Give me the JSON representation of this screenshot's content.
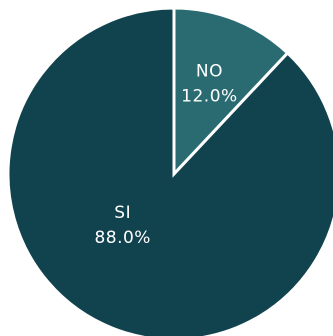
{
  "chart_data": {
    "type": "pie",
    "slices": [
      {
        "label": "NO",
        "value": 12.0,
        "display": "12.0%",
        "color": "#2a6b72"
      },
      {
        "label": "SI",
        "value": 88.0,
        "display": "88.0%",
        "color": "#11434f"
      }
    ],
    "separator_color": "#ffffff"
  }
}
